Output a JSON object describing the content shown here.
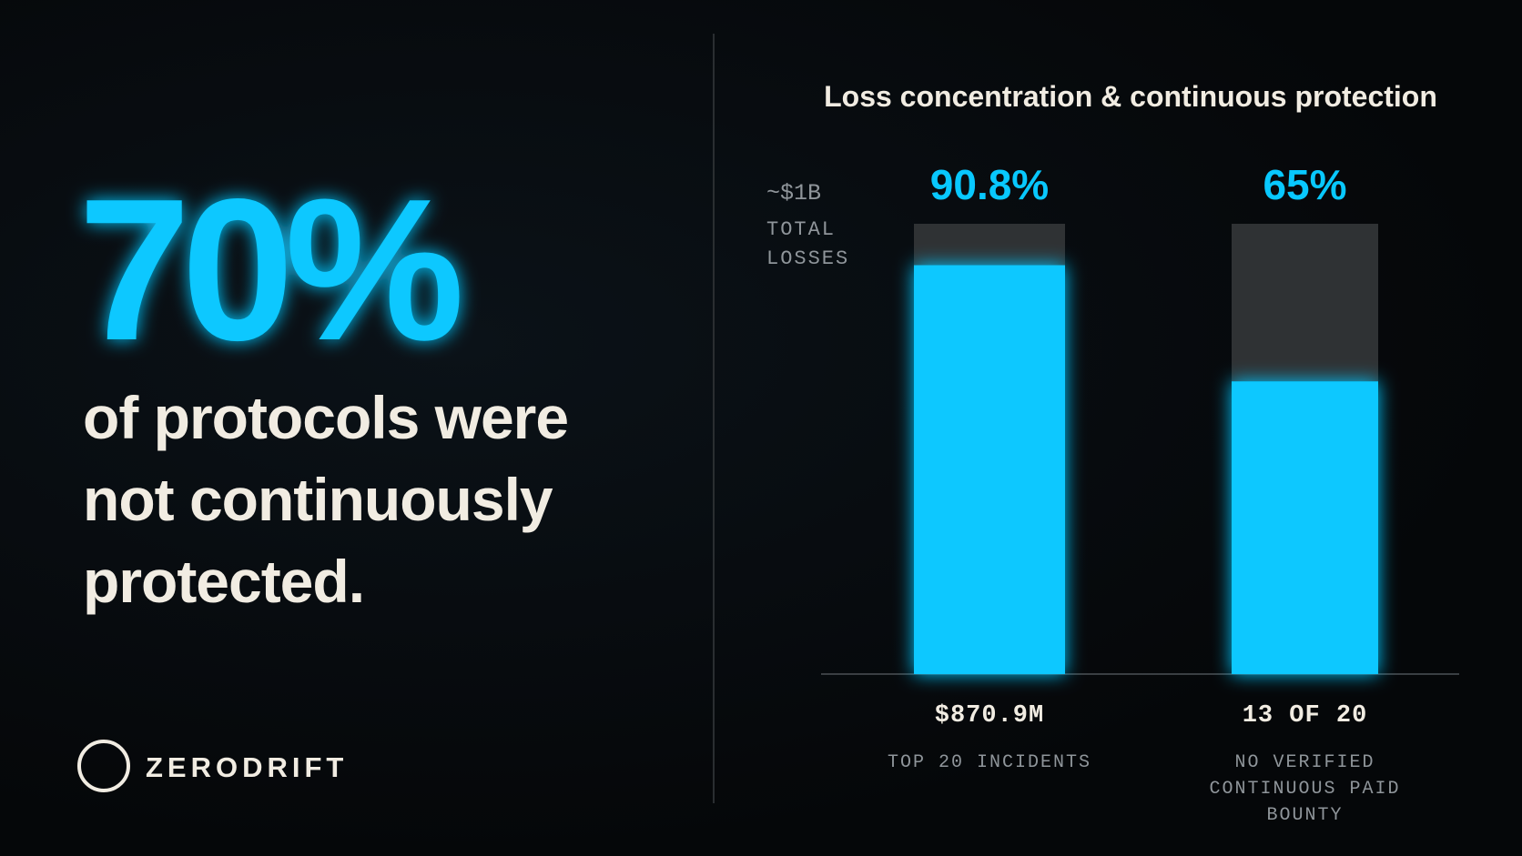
{
  "stat": {
    "figure": "70%",
    "text": "of protocols were not continuously protected."
  },
  "brand": "ZERODRIFT",
  "chart_data": {
    "type": "bar",
    "title": "Loss concentration & continuous protection",
    "annotation": {
      "value": "~$1B",
      "label": "TOTAL LOSSES"
    },
    "categories": [
      "$870.9M",
      "13 OF 20"
    ],
    "category_notes": [
      "TOP 20 INCIDENTS",
      "NO VERIFIED CONTINUOUS PAID BOUNTY"
    ],
    "values": [
      90.8,
      65
    ],
    "value_labels": [
      "90.8%",
      "65%"
    ],
    "color": "#08c8ff",
    "track_color": "#2f3234",
    "ylim": [
      0,
      100
    ]
  }
}
